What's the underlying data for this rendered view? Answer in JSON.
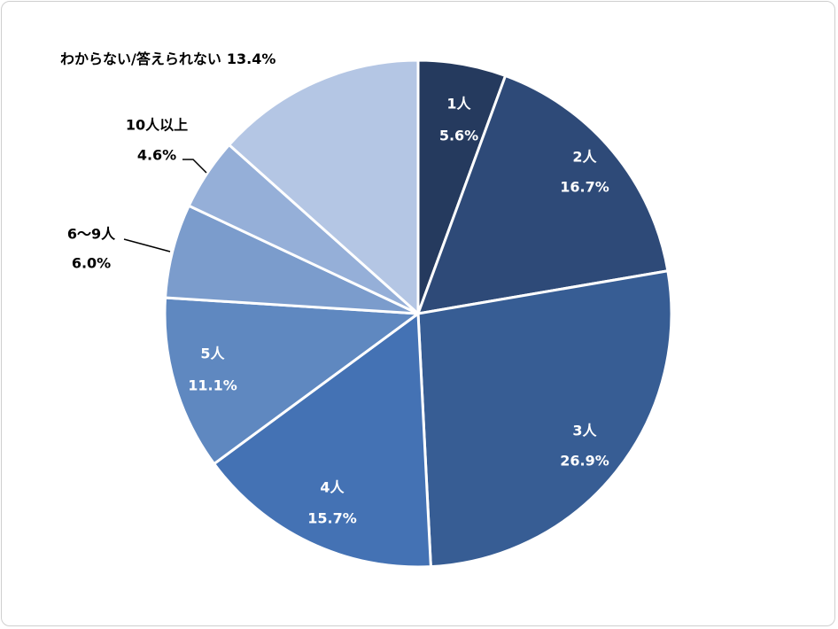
{
  "chart_data": {
    "type": "pie",
    "categories": [
      "1人",
      "2人",
      "3人",
      "4人",
      "5人",
      "6〜9人",
      "10人以上",
      "わからない/答えられない"
    ],
    "values": [
      5.6,
      16.7,
      26.9,
      15.7,
      11.1,
      6.0,
      4.6,
      13.4
    ],
    "value_labels": [
      "5.6%",
      "16.7%",
      "26.9%",
      "15.7%",
      "11.1%",
      "6.0%",
      "4.6%",
      "13.4%"
    ],
    "colors": [
      "#253a5e",
      "#2e4a78",
      "#375d94",
      "#4472b4",
      "#5f88c0",
      "#7b9ccc",
      "#95afd8",
      "#b4c6e4"
    ]
  }
}
